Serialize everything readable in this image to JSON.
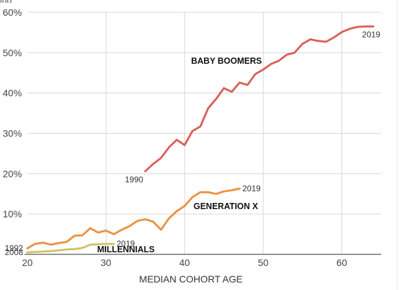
{
  "chart_data": {
    "type": "line",
    "xlabel": "MEDIAN COHORT AGE",
    "ylabel": "",
    "xlim": [
      20,
      65
    ],
    "ylim": [
      0,
      60
    ],
    "x_ticks": [
      20,
      30,
      40,
      50,
      60
    ],
    "y_ticks": [
      10,
      20,
      30,
      40,
      50,
      60
    ],
    "y_tick_labels": [
      "10%",
      "20%",
      "30%",
      "40%",
      "50%",
      "60%"
    ],
    "grid": true,
    "series": [
      {
        "name": "BABY BOOMERS",
        "color": "#d9635a",
        "start_label": "1990",
        "end_label": "2019",
        "x": [
          35,
          36,
          37,
          38,
          39,
          40,
          41,
          42,
          43,
          44,
          45,
          46,
          47,
          48,
          49,
          50,
          51,
          52,
          53,
          54,
          55,
          56,
          57,
          58,
          59,
          60,
          61,
          62,
          63,
          64
        ],
        "y": [
          20.6,
          22.4,
          23.9,
          26.5,
          28.4,
          27.1,
          30.6,
          31.7,
          36.2,
          38.5,
          41.2,
          40.3,
          42.6,
          42.0,
          44.7,
          45.8,
          47.2,
          48.0,
          49.5,
          50.0,
          52.2,
          53.3,
          52.9,
          52.7,
          53.8,
          55.1,
          55.9,
          56.4,
          56.5,
          56.5
        ]
      },
      {
        "name": "GENERATION X",
        "color": "#eb9345",
        "end_label": "2019",
        "x": [
          20,
          21,
          22,
          23,
          24,
          25,
          26,
          27,
          28,
          29,
          30,
          31,
          32,
          33,
          34,
          35,
          36,
          37,
          38,
          39,
          40,
          41,
          42,
          43,
          44,
          45,
          46,
          47
        ],
        "y": [
          1.5,
          2.6,
          2.9,
          2.4,
          2.8,
          3.1,
          4.6,
          4.7,
          6.5,
          5.4,
          5.9,
          5.0,
          6.1,
          7.0,
          8.3,
          8.7,
          8.1,
          6.1,
          8.9,
          10.7,
          12.0,
          14.2,
          15.4,
          15.4,
          15.0,
          15.6,
          15.9,
          16.3
        ]
      },
      {
        "name": "MILLENNIALS",
        "color": "#cfc46a",
        "end_label": "2019",
        "x": [
          20,
          21,
          22,
          23,
          24,
          25,
          26,
          27,
          28,
          29,
          30,
          31
        ],
        "y": [
          0.5,
          0.6,
          0.7,
          0.8,
          1.0,
          1.2,
          1.3,
          1.6,
          2.4,
          2.5,
          2.6,
          2.6
        ]
      }
    ],
    "side_labels": [
      {
        "text": "1992",
        "x": 20,
        "y": 1.5
      },
      {
        "text": "2008",
        "x": 20,
        "y": 0.5
      }
    ]
  },
  "top_fragment": "ing"
}
